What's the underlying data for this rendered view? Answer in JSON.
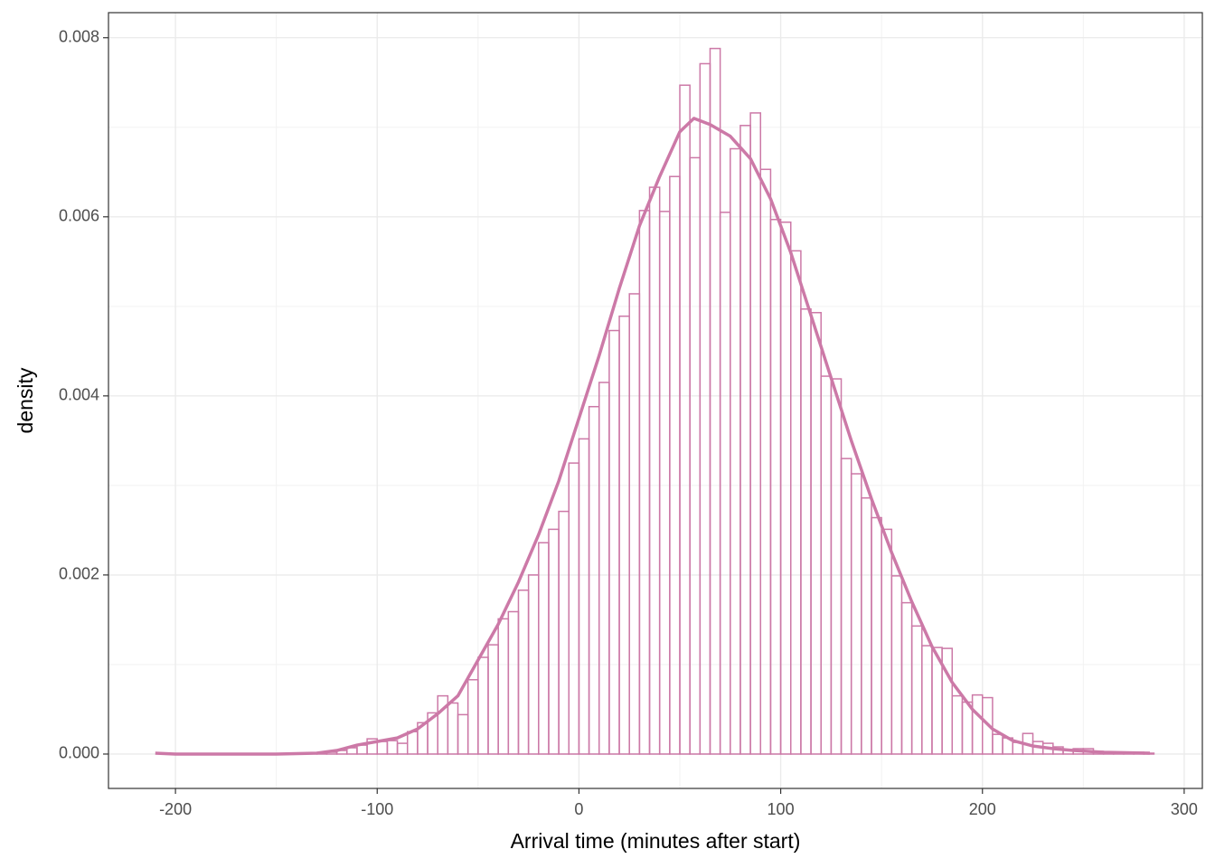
{
  "chart_data": {
    "type": "histogram",
    "x_label": "Arrival time (minutes after start)",
    "y_label": "density",
    "color": "#cc79a7",
    "grid": true,
    "xlim": [
      -233.2,
      309
    ],
    "ylim": [
      -0.000384,
      0.00828
    ],
    "xticks": [
      -200,
      -100,
      0,
      100,
      200,
      300
    ],
    "xminor": [
      -150,
      -50,
      50,
      150,
      250
    ],
    "yticks": [
      {
        "value": 0,
        "label": "0.000"
      },
      {
        "value": 0.002,
        "label": "0.002"
      },
      {
        "value": 0.004,
        "label": "0.004"
      },
      {
        "value": 0.006,
        "label": "0.006"
      },
      {
        "value": 0.008,
        "label": "0.008"
      }
    ],
    "yminor": [
      0.001,
      0.003,
      0.005,
      0.007
    ],
    "bins": [
      -210,
      -205,
      -200,
      -195,
      -190,
      -185,
      -180,
      -175,
      -170,
      -165,
      -160,
      -155,
      -150,
      -145,
      -140,
      -135,
      -130,
      -125,
      -120,
      -115,
      -110,
      -105,
      -100,
      -95,
      -90,
      -85,
      -80,
      -75,
      -70,
      -65,
      -60,
      -55,
      -50,
      -45,
      -40,
      -35,
      -30,
      -25,
      -20,
      -15,
      -10,
      -5,
      0,
      5,
      10,
      15,
      20,
      25,
      30,
      35,
      40,
      45,
      50,
      55,
      60,
      65,
      70,
      75,
      80,
      85,
      90,
      95,
      100,
      105,
      110,
      115,
      120,
      125,
      130,
      135,
      140,
      145,
      150,
      155,
      160,
      165,
      170,
      175,
      180,
      185,
      190,
      195,
      200,
      205,
      210,
      215,
      220,
      225,
      230,
      235,
      240,
      245,
      250,
      255,
      260,
      265,
      270,
      275,
      280,
      285
    ],
    "counts": [
      0,
      0,
      0,
      0,
      0,
      0,
      0,
      0,
      0,
      0,
      0,
      0,
      0,
      0,
      0,
      0,
      1e-05,
      2e-05,
      4e-05,
      7e-05,
      0.0001,
      0.00017,
      0.00014,
      0.00015,
      0.00012,
      0.00025,
      0.00035,
      0.00046,
      0.00065,
      0.00057,
      0.00044,
      0.00083,
      0.00108,
      0.00122,
      0.00151,
      0.00159,
      0.00183,
      0.002,
      0.00236,
      0.00251,
      0.00271,
      0.00325,
      0.00352,
      0.00388,
      0.00415,
      0.00473,
      0.00489,
      0.00514,
      0.00607,
      0.00633,
      0.00606,
      0.00645,
      0.00747,
      0.00666,
      0.00771,
      0.00788,
      0.00605,
      0.00676,
      0.00702,
      0.00716,
      0.00653,
      0.00597,
      0.00594,
      0.00562,
      0.00497,
      0.00493,
      0.00422,
      0.00419,
      0.0033,
      0.00313,
      0.00286,
      0.00264,
      0.00251,
      0.00199,
      0.00169,
      0.00143,
      0.00121,
      0.00119,
      0.00118,
      0.00065,
      0.00058,
      0.00066,
      0.00063,
      0.00022,
      0.00018,
      0.00013,
      0.00023,
      0.00014,
      0.00012,
      8e-05,
      5e-05,
      6e-05,
      6e-05,
      3e-05,
      2e-05,
      2e-05,
      1e-05,
      2e-05,
      1e-05
    ],
    "density": {
      "x": [
        -210,
        -200,
        -150,
        -130,
        -120,
        -110,
        -100,
        -90,
        -80,
        -70,
        -60,
        -50,
        -40,
        -30,
        -20,
        -10,
        0,
        10,
        20,
        30,
        40,
        50,
        57,
        65,
        75,
        85,
        95,
        105,
        115,
        125,
        135,
        145,
        155,
        165,
        175,
        185,
        195,
        205,
        215,
        225,
        235,
        245,
        260,
        283
      ],
      "y": [
        1e-05,
        0,
        0,
        1e-05,
        4e-05,
        0.0001,
        0.00014,
        0.00018,
        0.00028,
        0.00045,
        0.00065,
        0.00105,
        0.00145,
        0.00192,
        0.00245,
        0.00305,
        0.00375,
        0.00445,
        0.0052,
        0.0059,
        0.00645,
        0.00695,
        0.0071,
        0.00703,
        0.0069,
        0.00665,
        0.0062,
        0.0056,
        0.0049,
        0.0042,
        0.0035,
        0.00285,
        0.00225,
        0.0017,
        0.0012,
        0.0008,
        0.0005,
        0.00028,
        0.00015,
        9e-05,
        6e-05,
        4e-05,
        2e-05,
        1e-05
      ]
    }
  }
}
